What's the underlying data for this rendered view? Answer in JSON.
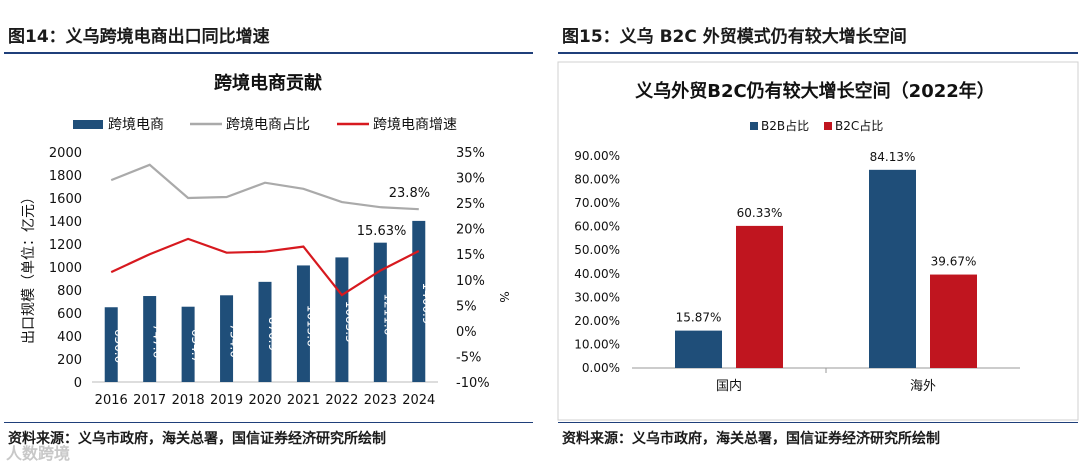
{
  "left": {
    "figure_title": "图14：义乌跨境电商出口同比增速",
    "source": "资料来源：义乌市政府，海关总署，国信证券经济研究所绘制"
  },
  "right": {
    "figure_title": "图15：义乌 B2C 外贸模式仍有较大增长空间",
    "source": "资料来源：义乌市政府，海关总署，国信证券经济研究所绘制"
  },
  "watermark": "人数跨境",
  "colors": {
    "navy": "#1f4e79",
    "gray": "#aaaaaa",
    "red": "#d7191f",
    "red2": "#c0151f"
  },
  "chart_data": [
    {
      "type": "bar",
      "title": "跨境电商贡献",
      "categories": [
        "2016",
        "2017",
        "2018",
        "2019",
        "2020",
        "2021",
        "2022",
        "2023",
        "2024"
      ],
      "series": [
        {
          "name": "跨境电商",
          "kind": "bar",
          "axis": "left",
          "values": [
            650.0,
            747.6,
            654.7,
            754.0,
            870.9,
            1013.6,
            1083.5,
            1211.6,
            1400.9
          ],
          "labels": [
            "650.0",
            "747.6",
            "654.7",
            "754.0",
            "870.9",
            "1013.6",
            "1083.5",
            "1211.6",
            "1400.9"
          ]
        },
        {
          "name": "跨境电商占比",
          "kind": "line",
          "axis": "right",
          "values": [
            29.5,
            32.5,
            26.0,
            26.2,
            29.0,
            27.8,
            25.2,
            24.2,
            23.8
          ]
        },
        {
          "name": "跨境电商增速",
          "kind": "line",
          "axis": "right",
          "values": [
            11.5,
            15.0,
            18.0,
            15.3,
            15.5,
            16.5,
            7.0,
            11.8,
            15.63
          ]
        }
      ],
      "ylabel": "出口规模（单位：亿元）",
      "ylim": [
        0,
        2000
      ],
      "yticks": [
        0,
        200,
        400,
        600,
        800,
        1000,
        1200,
        1400,
        1600,
        1800,
        2000
      ],
      "y2label": "%",
      "y2lim": [
        -10,
        35
      ],
      "y2ticks": [
        "-10%",
        "-5%",
        "0%",
        "5%",
        "10%",
        "15%",
        "20%",
        "25%",
        "30%",
        "35%"
      ],
      "annotations": [
        {
          "text": "23.8%",
          "series": "跨境电商占比",
          "category": "2024"
        },
        {
          "text": "15.63%",
          "series": "跨境电商增速",
          "category": "2024"
        }
      ],
      "legend": "top"
    },
    {
      "type": "bar",
      "title": "义乌外贸B2C仍有较大增长空间（2022年）",
      "categories": [
        "国内",
        "海外"
      ],
      "series": [
        {
          "name": "B2B占比",
          "values": [
            15.87,
            84.13
          ],
          "labels": [
            "15.87%",
            "84.13%"
          ]
        },
        {
          "name": "B2C占比",
          "values": [
            60.33,
            39.67
          ],
          "labels": [
            "60.33%",
            "39.67%"
          ]
        }
      ],
      "ylim": [
        0,
        90
      ],
      "yticks": [
        "0.00%",
        "10.00%",
        "20.00%",
        "30.00%",
        "40.00%",
        "50.00%",
        "60.00%",
        "70.00%",
        "80.00%",
        "90.00%"
      ],
      "legend": "top-left"
    }
  ]
}
